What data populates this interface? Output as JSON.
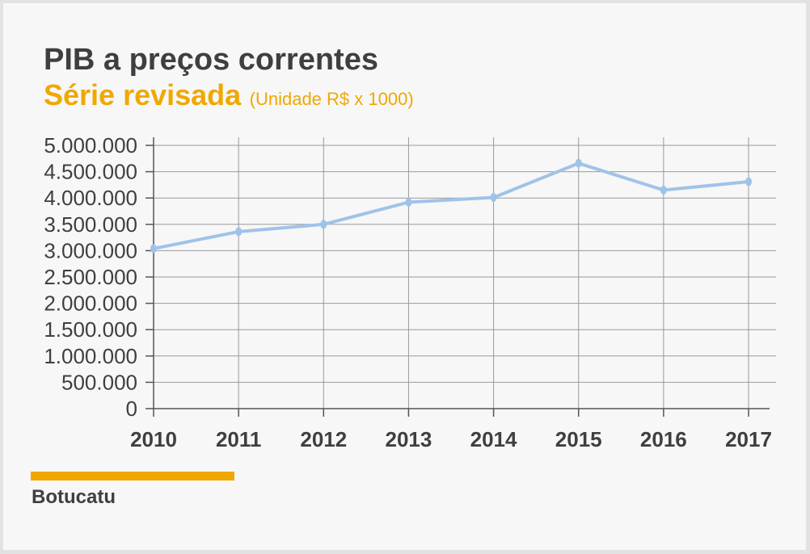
{
  "header": {
    "title": "PIB a preços correntes",
    "subtitle": "Série revisada",
    "unit_note": "(Unidade R$ x 1000)"
  },
  "legend": {
    "label": "Botucatu"
  },
  "colors": {
    "line": "#9fc3e8",
    "accent": "#f0a800",
    "text": "#3f3f3f",
    "grid": "#9a9a9a"
  },
  "chart_data": {
    "type": "line",
    "title": "PIB a preços correntes",
    "subtitle": "Série revisada",
    "xlabel": "",
    "ylabel": "",
    "categories": [
      "2010",
      "2011",
      "2012",
      "2013",
      "2014",
      "2015",
      "2016",
      "2017"
    ],
    "series": [
      {
        "name": "Botucatu",
        "values": [
          3040000,
          3360000,
          3500000,
          3920000,
          4010000,
          4660000,
          4150000,
          4310000
        ]
      }
    ],
    "ylim": [
      0,
      5000000
    ],
    "y_ticks": [
      0,
      500000,
      1000000,
      1500000,
      2000000,
      2500000,
      3000000,
      3500000,
      4000000,
      4500000,
      5000000
    ],
    "y_tick_labels": [
      "0",
      "500.000",
      "1.000.000",
      "1.500.000",
      "2.000.000",
      "2.500.000",
      "3.000.000",
      "3.500.000",
      "4.000.000",
      "4.500.000",
      "5.000.000"
    ],
    "grid": true,
    "legend_position": "bottom-left"
  }
}
